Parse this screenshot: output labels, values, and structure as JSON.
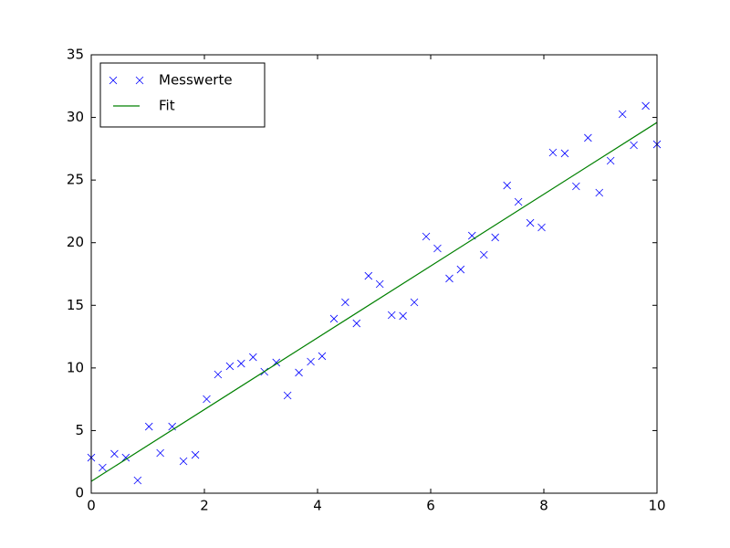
{
  "chart_data": {
    "type": "scatter",
    "series": [
      {
        "name": "Messwerte",
        "color": "#0000ff",
        "style": "marker",
        "x": [
          0,
          0.2,
          0.41,
          0.61,
          0.82,
          1.02,
          1.22,
          1.43,
          1.63,
          1.84,
          2.04,
          2.24,
          2.45,
          2.65,
          2.86,
          3.06,
          3.27,
          3.47,
          3.67,
          3.88,
          4.08,
          4.29,
          4.49,
          4.69,
          4.9,
          5.1,
          5.31,
          5.51,
          5.71,
          5.92,
          6.12,
          6.33,
          6.53,
          6.73,
          6.94,
          7.14,
          7.35,
          7.55,
          7.76,
          7.96,
          8.16,
          8.37,
          8.57,
          8.78,
          8.98,
          9.18,
          9.39,
          9.59,
          9.8,
          10
        ],
        "values": [
          2.84,
          2.04,
          3.14,
          2.84,
          1.02,
          5.32,
          3.21,
          5.32,
          2.55,
          3.06,
          7.51,
          9.48,
          10.14,
          10.35,
          10.86,
          9.7,
          10.43,
          7.8,
          9.63,
          10.5,
          10.94,
          13.93,
          15.24,
          13.56,
          17.35,
          16.7,
          14.22,
          14.15,
          15.24,
          20.49,
          19.54,
          17.14,
          17.86,
          20.56,
          19.03,
          20.42,
          24.57,
          23.26,
          21.58,
          21.22,
          27.2,
          27.13,
          24.5,
          28.37,
          23.99,
          26.54,
          30.26,
          27.78,
          30.92,
          27.85
        ]
      },
      {
        "name": "Fit",
        "color": "#008000",
        "style": "line",
        "x": [
          0,
          10
        ],
        "values": [
          0.95,
          29.6
        ]
      }
    ],
    "xlim": [
      0,
      10
    ],
    "xticks": [
      0,
      2,
      4,
      6,
      8,
      10
    ],
    "ylim": [
      0,
      35
    ],
    "yticks": [
      0,
      5,
      10,
      15,
      20,
      25,
      30,
      35
    ],
    "grid": false,
    "legend": "upper left"
  }
}
